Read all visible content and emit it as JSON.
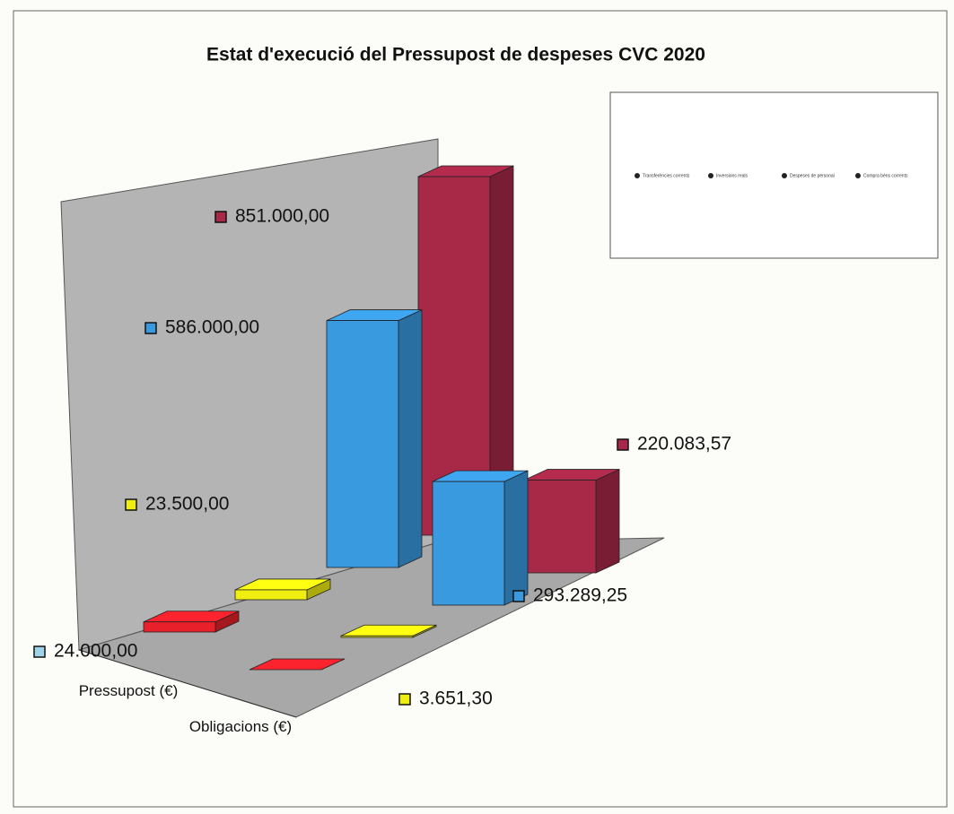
{
  "chart_data": {
    "type": "bar3d",
    "title": "Estat d'execució del Pressupost de despeses CVC 2020",
    "categories": [
      "Pressupost (€)",
      "Obligacions (€)"
    ],
    "series": [
      {
        "name": "Transferències corrents",
        "color": "#e8202a",
        "values": [
          24000,
          0
        ],
        "value_labels": [
          "24.000,00",
          null
        ]
      },
      {
        "name": "Inversions reals",
        "color": "#f0ee10",
        "values": [
          23500,
          3651.3
        ],
        "value_labels": [
          "23.500,00",
          "3.651,30"
        ]
      },
      {
        "name": "Despeses de personal",
        "color": "#3a9ae0",
        "values": [
          586000,
          293289.25
        ],
        "value_labels": [
          "586.000,00",
          "293.289,25"
        ]
      },
      {
        "name": "Compra béns corrents",
        "color": "#a82848",
        "values": [
          851000,
          220083.57
        ],
        "value_labels": [
          "851.000,00",
          "220.083,57"
        ]
      }
    ],
    "legend": "top-right"
  }
}
